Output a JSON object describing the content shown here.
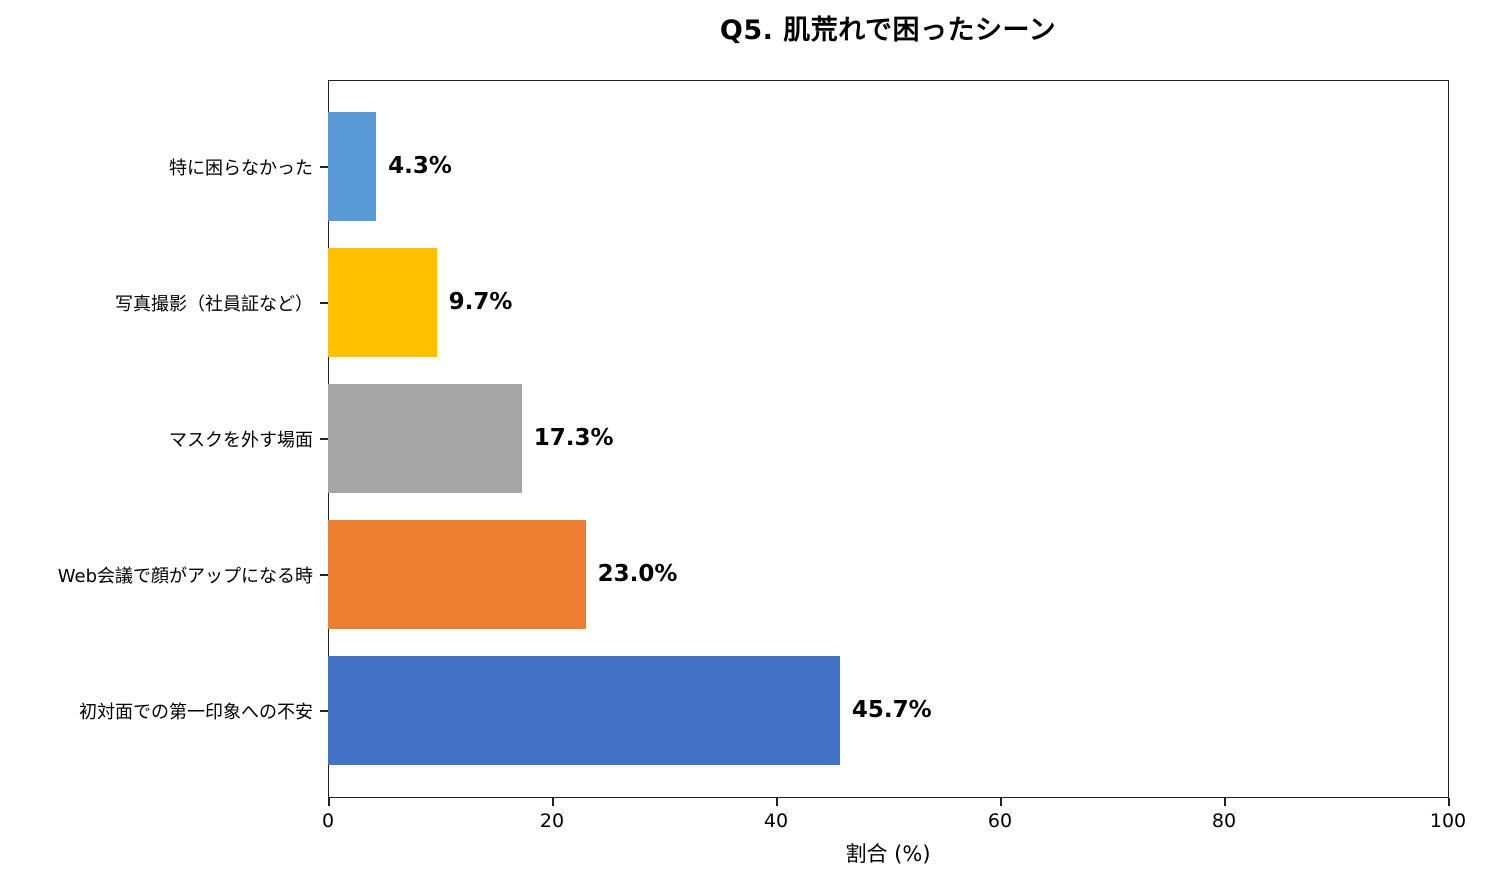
{
  "chart_data": {
    "type": "bar",
    "orientation": "horizontal",
    "title": "Q5. 肌荒れで困ったシーン",
    "xlabel": "割合 (%)",
    "ylabel": "",
    "xlim": [
      0,
      100
    ],
    "xticks": [
      "0",
      "20",
      "40",
      "60",
      "80",
      "100"
    ],
    "grid": false,
    "legend": null,
    "categories": [
      "特に困らなかった",
      "写真撮影（社員証など）",
      "マスクを外す場面",
      "Web会議で顔がアップになる時",
      "初対面での第一印象への不安"
    ],
    "values": [
      4.3,
      9.7,
      17.3,
      23.0,
      45.7
    ],
    "value_labels": [
      "4.3%",
      "9.7%",
      "17.3%",
      "23.0%",
      "45.7%"
    ],
    "colors": [
      "#5B9BD5",
      "#FFC000",
      "#A5A5A5",
      "#ED7D31",
      "#4472C4"
    ]
  },
  "title": "Q5. 肌荒れで困ったシーン",
  "xaxis": {
    "label": "割合 (%)",
    "ticks": [
      "0",
      "20",
      "40",
      "60",
      "80",
      "100"
    ]
  },
  "bars": [
    {
      "category": "特に困らなかった",
      "value": 4.3,
      "label": "4.3%",
      "color": "#5B9BD5"
    },
    {
      "category": "写真撮影（社員証など）",
      "value": 9.7,
      "label": "9.7%",
      "color": "#FFC000"
    },
    {
      "category": "マスクを外す場面",
      "value": 17.3,
      "label": "17.3%",
      "color": "#A5A5A5"
    },
    {
      "category": "Web会議で顔がアップになる時",
      "value": 23.0,
      "label": "23.0%",
      "color": "#ED7D31"
    },
    {
      "category": "初対面での第一印象への不安",
      "value": 45.7,
      "label": "45.7%",
      "color": "#4472C4"
    }
  ]
}
